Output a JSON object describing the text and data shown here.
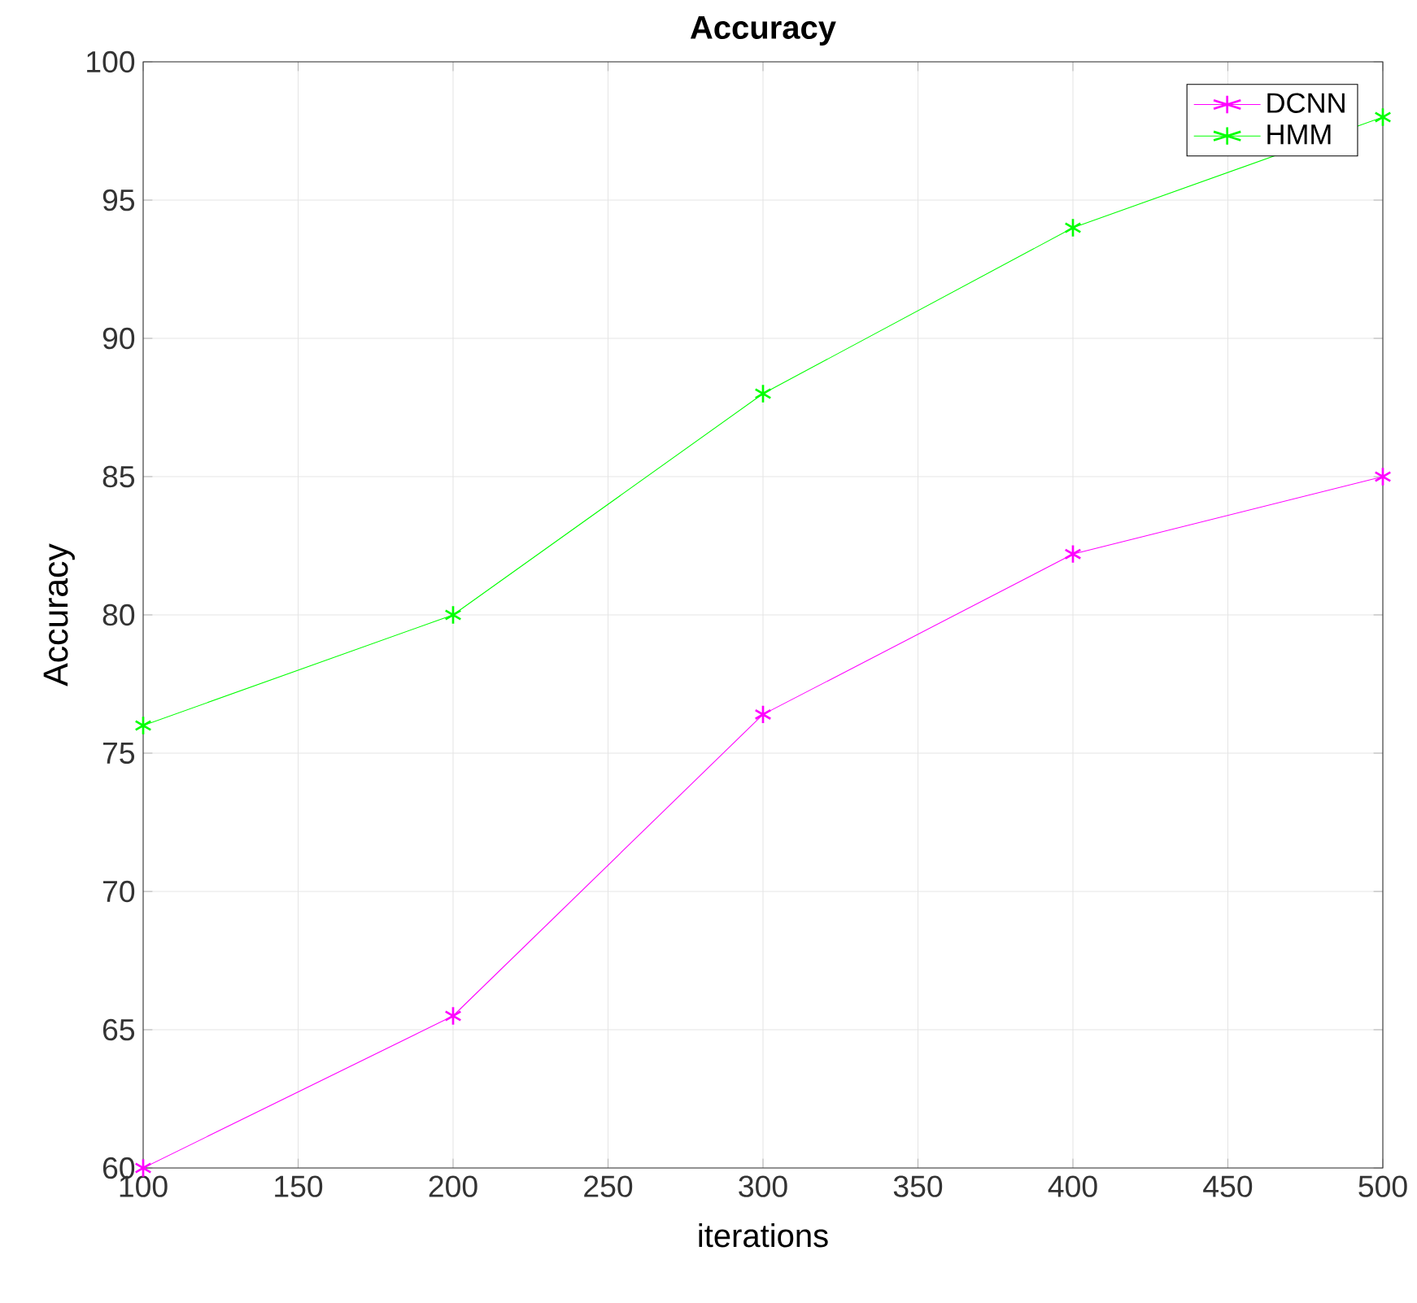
{
  "chart_data": {
    "type": "line",
    "title": "Accuracy",
    "xlabel": "iterations",
    "ylabel": "Accuracy",
    "x": [
      100,
      200,
      300,
      400,
      500
    ],
    "series": [
      {
        "name": "DCNN",
        "color": "#ff00ff",
        "values": [
          60,
          65.5,
          76.4,
          82.2,
          85
        ]
      },
      {
        "name": "HMM",
        "color": "#00ff00",
        "values": [
          76,
          80,
          88,
          94,
          98
        ]
      }
    ],
    "xlim": [
      100,
      500
    ],
    "xticks": [
      100,
      150,
      200,
      250,
      300,
      350,
      400,
      450,
      500
    ],
    "ylim": [
      60,
      100
    ],
    "yticks": [
      60,
      65,
      70,
      75,
      80,
      85,
      90,
      95,
      100
    ],
    "grid": true,
    "legend": "top right",
    "marker": "cross",
    "line_style": "solid"
  }
}
